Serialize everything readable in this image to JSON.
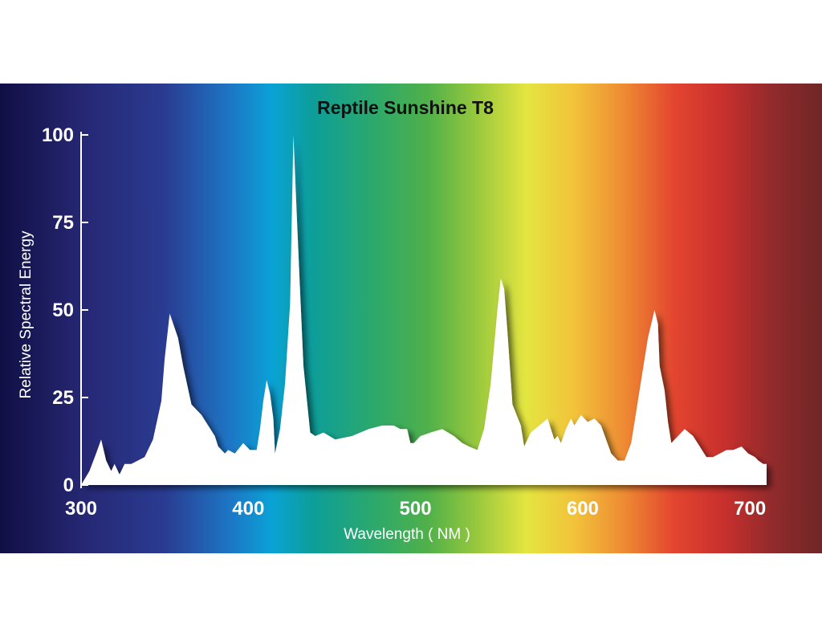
{
  "chart_data": {
    "type": "area",
    "title": "Reptile Sunshine T8",
    "xlabel": "Wavelength ( NM )",
    "ylabel": "Relative Spectral Energy",
    "xlim": [
      300,
      710
    ],
    "ylim": [
      0,
      100
    ],
    "x_ticks": [
      300,
      400,
      500,
      600,
      700
    ],
    "y_ticks": [
      0,
      25,
      50,
      75,
      100
    ],
    "grid": false,
    "legend": "none",
    "background": "visible-spectrum gradient",
    "fill_color": "#ffffff",
    "series": [
      {
        "x": [
          300,
          305,
          309,
          312,
          315,
          318,
          320,
          323,
          326,
          330,
          334,
          338,
          343,
          348,
          350,
          353,
          358,
          361,
          366,
          372,
          376,
          380,
          382,
          384,
          386,
          388,
          392,
          397,
          401,
          405,
          407,
          409,
          411,
          413,
          415,
          416,
          419,
          422,
          425,
          427,
          429,
          431,
          433,
          437,
          440,
          445,
          452,
          462,
          472,
          480,
          487,
          491,
          495,
          497,
          499,
          503,
          509,
          516,
          523,
          528,
          532,
          537,
          541,
          545,
          549,
          551,
          553,
          555,
          558,
          563,
          565,
          569,
          574,
          579,
          581,
          583,
          585,
          587,
          590,
          593,
          595,
          599,
          603,
          607,
          611,
          617,
          621,
          625,
          629,
          634,
          639,
          643,
          645,
          646,
          649,
          651,
          653,
          657,
          661,
          666,
          670,
          674,
          678,
          682,
          686,
          690,
          695,
          699,
          703,
          705,
          708,
          710
        ],
        "values": [
          0,
          4,
          9,
          13,
          7,
          4,
          6,
          3,
          6,
          6,
          7,
          8,
          13,
          24,
          36,
          49,
          42,
          34,
          23,
          20,
          17,
          14,
          11,
          10,
          9,
          10,
          9,
          12,
          10,
          10,
          16,
          24,
          30,
          26,
          19,
          9,
          16,
          29,
          52,
          100,
          77,
          55,
          34,
          15,
          14,
          15,
          13,
          14,
          16,
          17,
          17,
          16,
          16,
          12,
          12,
          14,
          15,
          16,
          14,
          12,
          11,
          10,
          16,
          29,
          50,
          59,
          56,
          44,
          23,
          17,
          11,
          15,
          17,
          19,
          16,
          13,
          14,
          12,
          16,
          19,
          17,
          20,
          18,
          19,
          17,
          9,
          7,
          7,
          12,
          27,
          42,
          50,
          46,
          34,
          27,
          18,
          12,
          14,
          16,
          14,
          11,
          8,
          8,
          9,
          10,
          10,
          11,
          9,
          8,
          7,
          6,
          6
        ]
      }
    ]
  }
}
